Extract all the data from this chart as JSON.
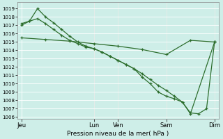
{
  "bg_color": "#ceeee8",
  "grid_color": "#b8ddd8",
  "line_color": "#2d6e2d",
  "ylim": [
    1005.8,
    1019.8
  ],
  "yticks": [
    1006,
    1007,
    1008,
    1009,
    1010,
    1011,
    1012,
    1013,
    1014,
    1015,
    1016,
    1017,
    1018,
    1019
  ],
  "x_ticks_labels": [
    "Jeu",
    "",
    "Lun",
    "Ven",
    "",
    "Sam",
    "",
    "Dim"
  ],
  "x_ticks_pos": [
    0,
    6,
    9,
    12,
    15,
    18,
    21,
    24
  ],
  "xlabel_ticks_labels": [
    "Jeu",
    "Lun",
    "Ven",
    "Sam",
    "Dim"
  ],
  "xlabel_ticks_pos": [
    0,
    9,
    12,
    18,
    24
  ],
  "xlabel": "Pression niveau de la mer( hPa )",
  "line1_x": [
    0,
    3,
    6,
    9,
    12,
    15,
    18,
    21,
    24
  ],
  "line1_y": [
    1015.5,
    1015.3,
    1015.1,
    1014.8,
    1014.5,
    1014.1,
    1013.5,
    1015.2,
    1015.0
  ],
  "line2_x": [
    0,
    1,
    2,
    3,
    4,
    5,
    6,
    7,
    8,
    9,
    10,
    11,
    12,
    13,
    14,
    15,
    16,
    17,
    18,
    19,
    20,
    21,
    24
  ],
  "line2_y": [
    1017.2,
    1017.5,
    1017.8,
    1017.2,
    1016.5,
    1015.8,
    1015.2,
    1014.8,
    1014.4,
    1014.2,
    1013.8,
    1013.3,
    1012.8,
    1012.3,
    1011.8,
    1011.2,
    1010.5,
    1009.8,
    1009.2,
    1008.5,
    1007.8,
    1006.4,
    1015.0
  ],
  "line3_x": [
    0,
    1,
    2,
    3,
    4,
    5,
    6,
    7,
    8,
    9,
    10,
    11,
    12,
    13,
    14,
    15,
    16,
    17,
    18,
    19,
    20,
    21,
    22,
    23,
    24
  ],
  "line3_y": [
    1017.0,
    1017.5,
    1019.0,
    1018.0,
    1017.3,
    1016.5,
    1015.7,
    1015.0,
    1014.5,
    1014.2,
    1013.8,
    1013.3,
    1012.8,
    1012.3,
    1011.8,
    1010.8,
    1010.0,
    1009.0,
    1008.5,
    1008.2,
    1007.8,
    1006.5,
    1006.4,
    1007.0,
    1015.0
  ]
}
